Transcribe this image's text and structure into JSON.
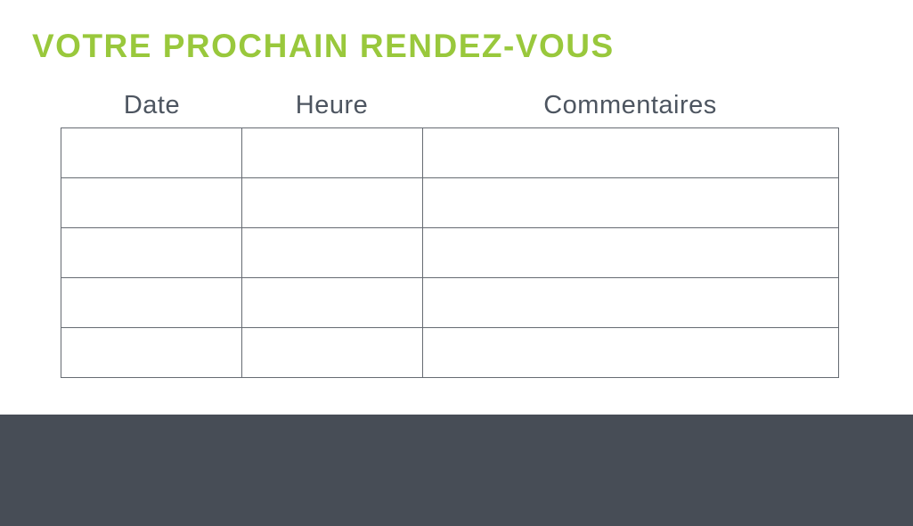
{
  "slide": {
    "title": "VOTRE PROCHAIN RENDEZ-VOUS"
  },
  "appointments_table": {
    "columns": [
      "Date",
      "Heure",
      "Commentaires"
    ],
    "rows": [
      [
        "",
        "",
        ""
      ],
      [
        "",
        "",
        ""
      ],
      [
        "",
        "",
        ""
      ],
      [
        "",
        "",
        ""
      ],
      [
        "",
        "",
        ""
      ]
    ],
    "row_count": 5
  },
  "colors": {
    "accent_green": "#99c83c",
    "header_text": "#4d5560",
    "table_border": "#666b72",
    "footer_dark": "#474d56",
    "background": "#ffffff"
  }
}
